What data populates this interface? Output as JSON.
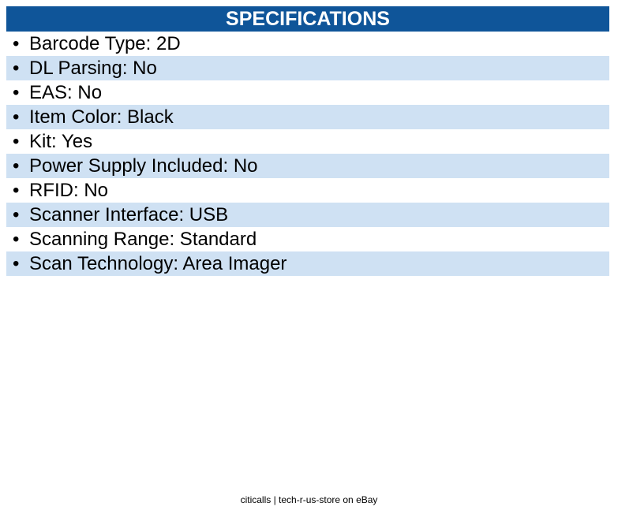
{
  "header": {
    "title": "SPECIFICATIONS"
  },
  "colors": {
    "header_bg": "#0f5599",
    "stripe": "#cfe1f3"
  },
  "specs": [
    "Barcode Type: 2D",
    "DL Parsing: No",
    "EAS: No",
    "Item Color: Black",
    "Kit: Yes",
    "Power Supply Included: No",
    "RFID: No",
    "Scanner Interface: USB",
    "Scanning Range: Standard",
    "Scan Technology: Area Imager"
  ],
  "footer": {
    "text": "citicalls | tech-r-us-store on eBay"
  }
}
